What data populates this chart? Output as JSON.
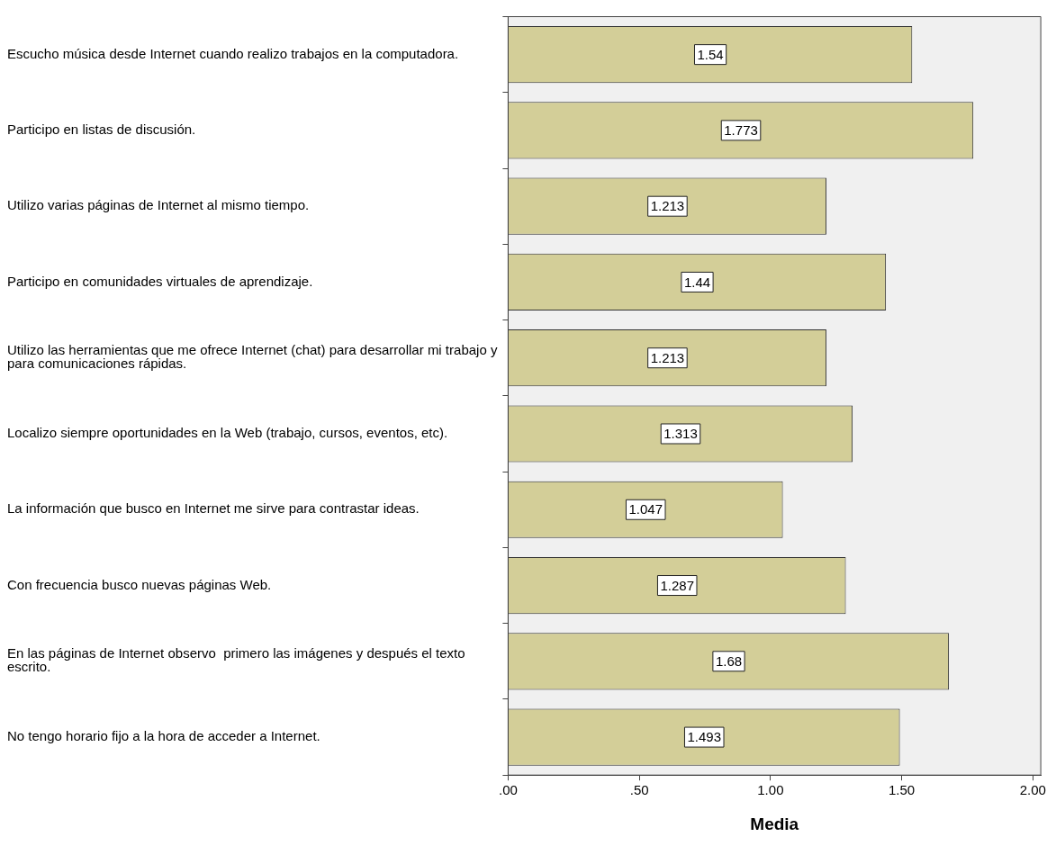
{
  "chart_data": {
    "type": "bar",
    "orientation": "horizontal",
    "xlabel": "Media",
    "categories": [
      "Escucho música desde Internet cuando realizo trabajos en la computadora.",
      "Participo en listas de discusión.",
      "Utilizo varias páginas de Internet al mismo tiempo.",
      "Participo en comunidades virtuales de aprendizaje.",
      "Utilizo las herramientas que me ofrece Internet (chat) para desarrollar mi trabajo y para comunicaciones rápidas.",
      "Localizo siempre oportunidades en la Web (trabajo, cursos, eventos, etc).",
      "La información que busco en Internet me sirve para contrastar ideas.",
      "Con frecuencia busco nuevas páginas Web.",
      "En las páginas de Internet observo  primero las imágenes y después el texto escrito.",
      "No tengo horario fijo a la hora de acceder a Internet."
    ],
    "values": [
      1.54,
      1.773,
      1.213,
      1.44,
      1.213,
      1.313,
      1.047,
      1.287,
      1.68,
      1.493
    ],
    "color": "#d3ce98",
    "data_labels": true,
    "grid": false,
    "legend": false,
    "xlim": [
      0,
      2.03
    ],
    "xticks": [
      {
        "value": 0,
        "label": ".00"
      },
      {
        "value": 0.5,
        "label": ".50"
      },
      {
        "value": 1,
        "label": "1.00"
      },
      {
        "value": 1.5,
        "label": "1.50"
      },
      {
        "value": 2,
        "label": "2.00"
      }
    ]
  }
}
